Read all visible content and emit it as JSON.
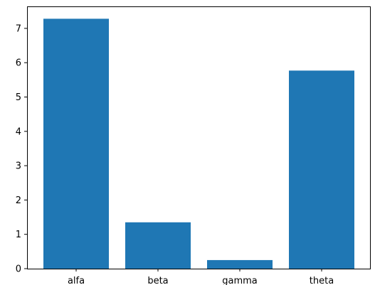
{
  "chart_data": {
    "type": "bar",
    "categories": [
      "alfa",
      "beta",
      "gamma",
      "theta"
    ],
    "values": [
      7.28,
      1.35,
      0.25,
      5.77
    ],
    "bar_color": "#1f77b4",
    "ylim": [
      0,
      7.64
    ],
    "yticks": [
      0,
      1,
      2,
      3,
      4,
      5,
      6,
      7
    ],
    "ytick_labels": [
      "0",
      "1",
      "2",
      "3",
      "4",
      "5",
      "6",
      "7"
    ],
    "title": "",
    "xlabel": "",
    "ylabel": "",
    "grid": false,
    "legend": "none"
  }
}
